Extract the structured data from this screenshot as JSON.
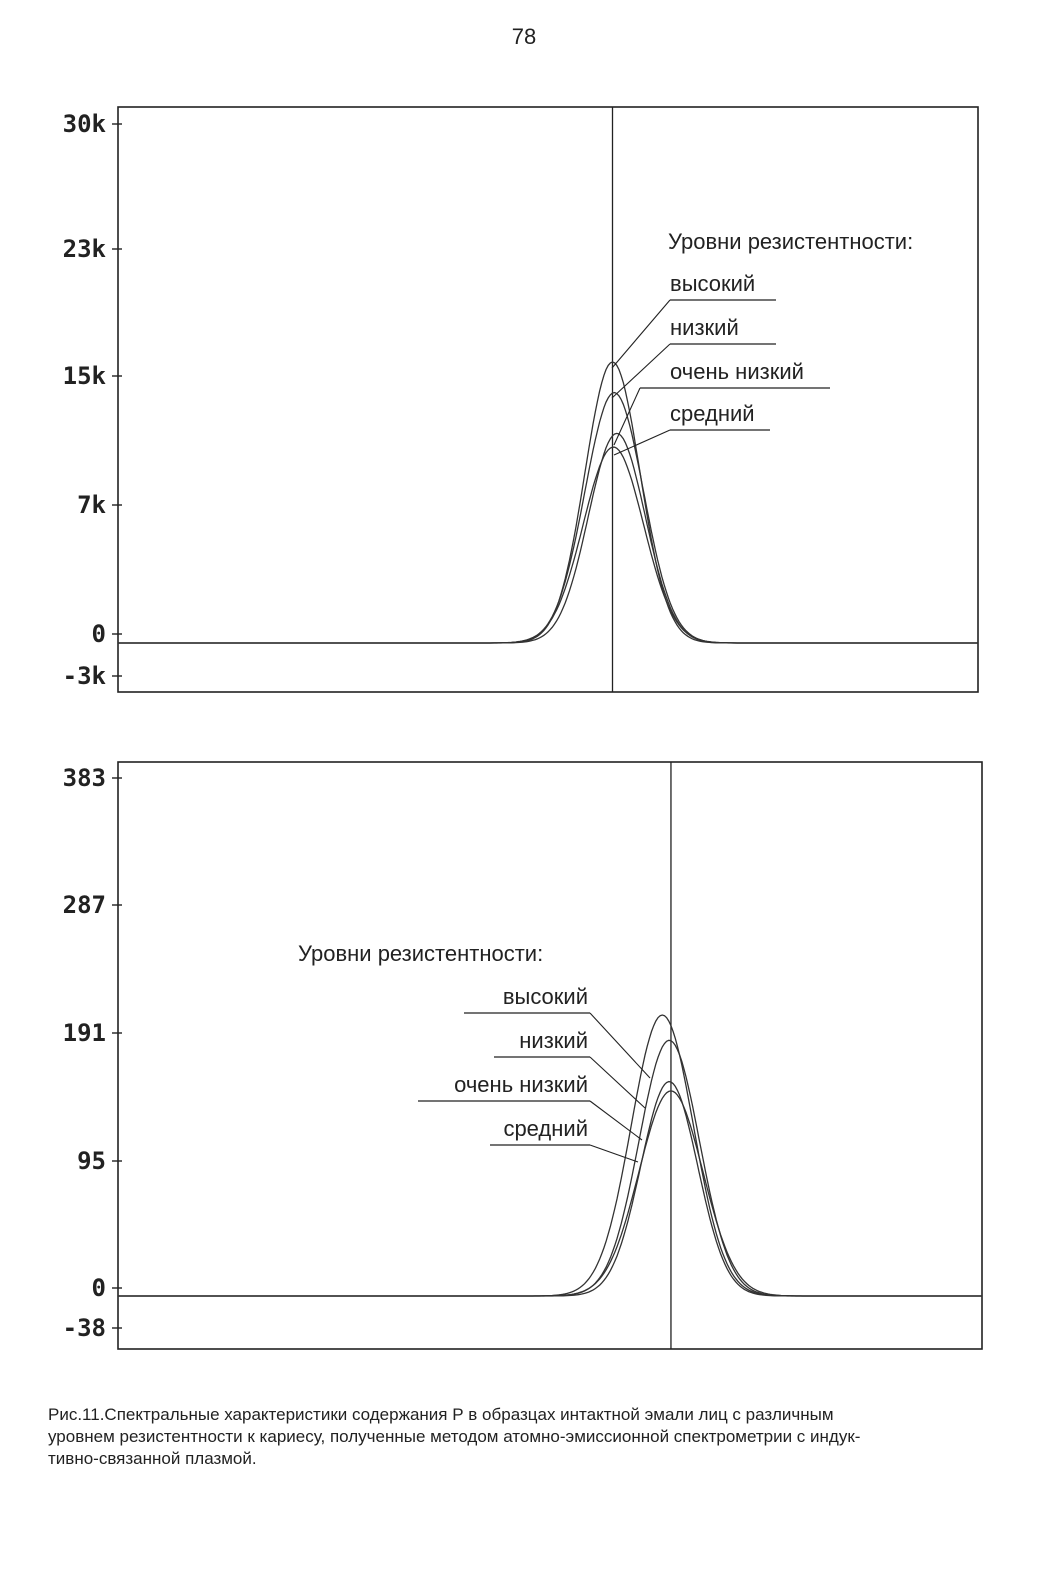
{
  "page_number": "78",
  "caption": {
    "line1": "Рис.11.Спектральные характеристики содержания Р в образцах интактной эмали лиц с различным",
    "line2": "уровнем резистентности к кариесу, полученные методом атомно-эмиссионной спектрометрии с индук-",
    "line3": "тивно-связанной плазмой."
  },
  "chart_data": [
    {
      "type": "line",
      "title": "",
      "xlabel": "",
      "ylabel": "",
      "yticks": [
        "30k",
        "23k",
        "15k",
        "7k",
        "0",
        "-3k"
      ],
      "ytick_values": [
        30000,
        23000,
        15000,
        7000,
        0,
        -3000
      ],
      "ylim": [
        -3000,
        30000
      ],
      "xlim": [
        0,
        100
      ],
      "peak_marker_x": 57.5,
      "grid": false,
      "legend_title": "Уровни резистентности:",
      "series": [
        {
          "name": "высокий",
          "peak": 16000,
          "center": 57.5,
          "width": 3.2
        },
        {
          "name": "низкий",
          "peak": 14200,
          "center": 57.7,
          "width": 3.4
        },
        {
          "name": "очень низкий",
          "peak": 11800,
          "center": 58.0,
          "width": 3.3
        },
        {
          "name": "средний",
          "peak": 11000,
          "center": 57.6,
          "width": 3.5
        }
      ]
    },
    {
      "type": "line",
      "title": "",
      "xlabel": "",
      "ylabel": "",
      "yticks": [
        "383",
        "287",
        "191",
        "95",
        "0",
        "-38"
      ],
      "ytick_values": [
        383,
        287,
        191,
        95,
        0,
        -38
      ],
      "ylim": [
        -38,
        383
      ],
      "xlim": [
        0,
        100
      ],
      "peak_marker_x": 64.0,
      "grid": false,
      "legend_title": "Уровни резистентности:",
      "series": [
        {
          "name": "высокий",
          "peak": 205,
          "center": 63.0,
          "width": 3.6
        },
        {
          "name": "низкий",
          "peak": 186,
          "center": 63.8,
          "width": 3.5
        },
        {
          "name": "очень низкий",
          "peak": 155,
          "center": 63.8,
          "width": 3.3
        },
        {
          "name": "средний",
          "peak": 148,
          "center": 64.0,
          "width": 3.7
        }
      ]
    }
  ]
}
